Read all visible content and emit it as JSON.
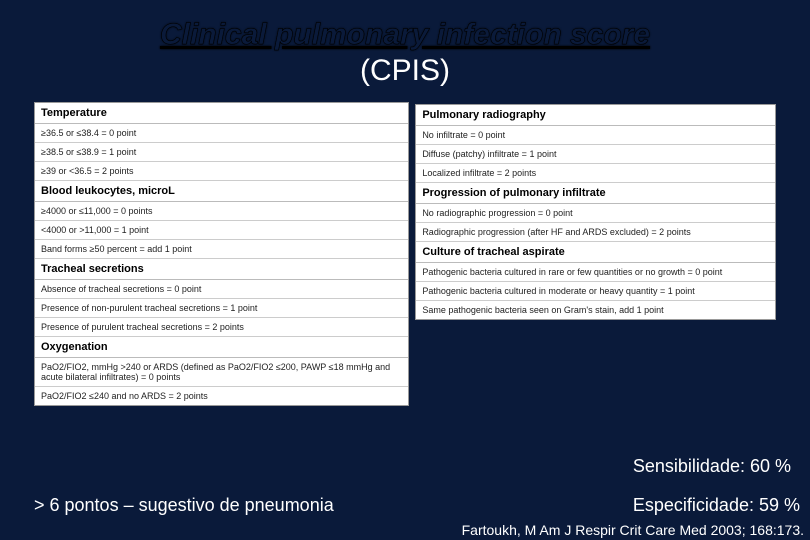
{
  "title": {
    "main": "Clinical pulmonary infection score",
    "sub": "(CPIS)"
  },
  "left_table": {
    "sections": [
      {
        "header": "Temperature",
        "rows": [
          "≥36.5 or ≤38.4 = 0 point",
          "≥38.5 or ≤38.9 = 1 point",
          "≥39 or <36.5 = 2 points"
        ]
      },
      {
        "header": "Blood leukocytes, microL",
        "rows": [
          "≥4000 or ≤11,000 = 0 points",
          "<4000 or >11,000 = 1 point",
          "Band forms ≥50 percent = add 1 point"
        ]
      },
      {
        "header": "Tracheal secretions",
        "rows": [
          "Absence of tracheal secretions = 0 point",
          "Presence of non-purulent tracheal secretions = 1 point",
          "Presence of purulent tracheal secretions = 2 points"
        ]
      },
      {
        "header": "Oxygenation",
        "rows": [
          "PaO2/FIO2, mmHg >240 or ARDS (defined as PaO2/FIO2 ≤200, PAWP ≤18 mmHg and acute bilateral infiltrates) = 0 points",
          "PaO2/FIO2 ≤240 and no ARDS = 2 points"
        ]
      }
    ]
  },
  "right_table": {
    "sections": [
      {
        "header": "Pulmonary radiography",
        "rows": [
          "No infiltrate = 0 point",
          "Diffuse (patchy) infiltrate = 1 point",
          "Localized infiltrate = 2 points"
        ]
      },
      {
        "header": "Progression of pulmonary infiltrate",
        "rows": [
          "No radiographic progression = 0 point",
          "Radiographic progression (after HF and ARDS excluded) = 2 points"
        ]
      },
      {
        "header": "Culture of tracheal aspirate",
        "rows": [
          "Pathogenic bacteria cultured in rare or few quantities or no growth = 0 point",
          "Pathogenic bacteria cultured in moderate or heavy quantity = 1 point",
          "Same pathogenic bacteria seen on Gram's stain, add 1 point"
        ]
      }
    ]
  },
  "notes": {
    "threshold": "> 6  pontos – sugestivo de pneumonia",
    "sensibilidade": "Sensibilidade: 60 %",
    "especificidade": "Especificidade: 59 %"
  },
  "citation": "Fartoukh, M Am J Respir Crit Care Med 2003; 168:173.",
  "colors": {
    "background": "#0a1a3a",
    "text_light": "#ffffff",
    "table_bg": "#ffffff",
    "border": "#bbbbbb"
  }
}
